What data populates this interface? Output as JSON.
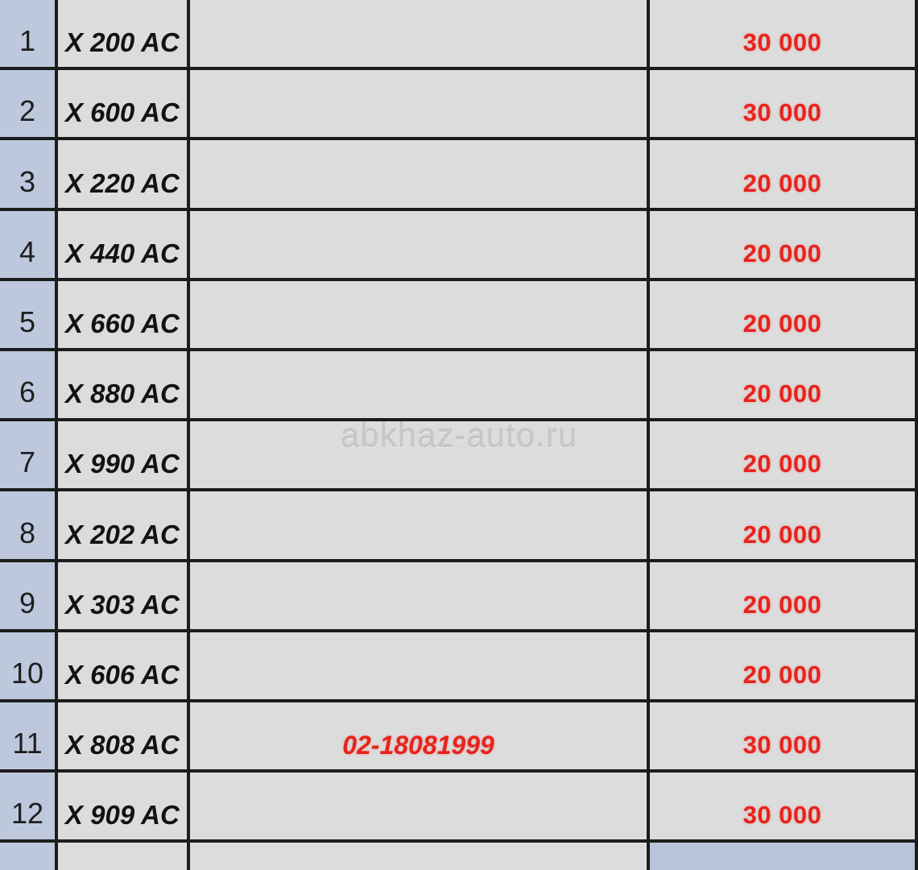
{
  "watermark": "abkhaz-auto.ru",
  "colors": {
    "row_number_bg": "#bec8dd",
    "cell_bg": "#dcdcdc",
    "border": "#1c1c1c",
    "price_text": "#e8231d",
    "model_text": "#121212",
    "footer_price_bg": "#b9c4da"
  },
  "table": {
    "rows": [
      {
        "num": "1",
        "model": "X 200 AC",
        "desc": "",
        "price": "30 000"
      },
      {
        "num": "2",
        "model": "X 600 AC",
        "desc": "",
        "price": "30 000"
      },
      {
        "num": "3",
        "model": "X 220 AC",
        "desc": "",
        "price": "20 000"
      },
      {
        "num": "4",
        "model": "X 440 AC",
        "desc": "",
        "price": "20 000"
      },
      {
        "num": "5",
        "model": "X 660 AC",
        "desc": "",
        "price": "20 000"
      },
      {
        "num": "6",
        "model": "X 880 AC",
        "desc": "",
        "price": "20 000"
      },
      {
        "num": "7",
        "model": "X 990 AC",
        "desc": "",
        "price": "20 000"
      },
      {
        "num": "8",
        "model": "X 202 AC",
        "desc": "",
        "price": "20 000"
      },
      {
        "num": "9",
        "model": "X 303 AC",
        "desc": "",
        "price": "20 000"
      },
      {
        "num": "10",
        "model": "X 606 AC",
        "desc": "",
        "price": "20 000"
      },
      {
        "num": "11",
        "model": "X 808 AC",
        "desc": "02-18081999",
        "price": "30 000"
      },
      {
        "num": "12",
        "model": "X 909 AC",
        "desc": "",
        "price": "30 000"
      },
      {
        "num": "",
        "model": "",
        "desc": "",
        "price": ""
      }
    ]
  }
}
